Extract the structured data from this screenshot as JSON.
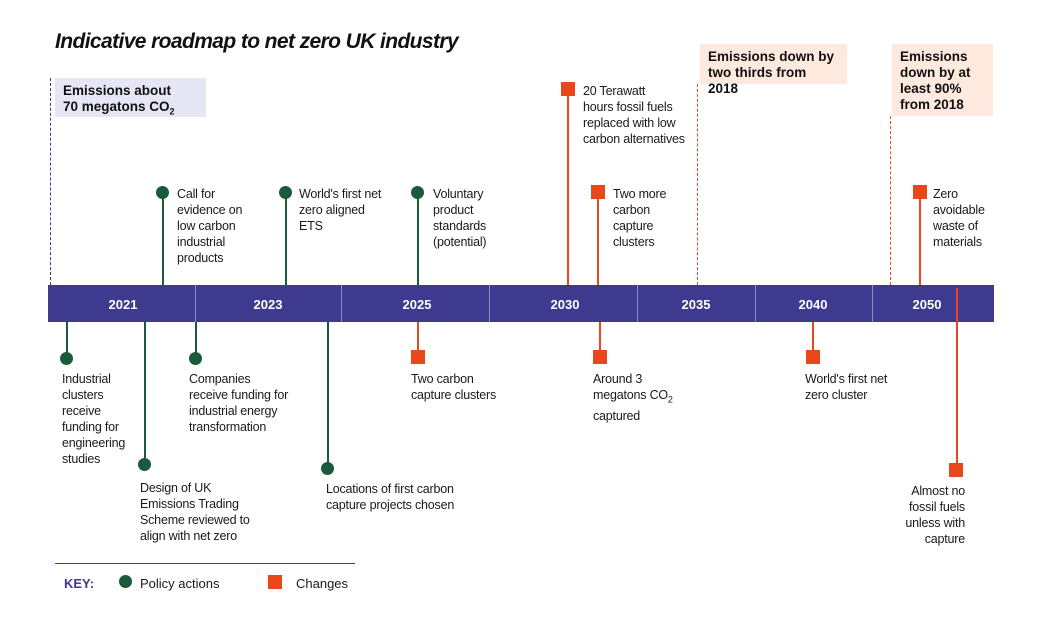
{
  "title": "Indicative roadmap to net zero UK industry",
  "callouts": {
    "start": {
      "line1": "Emissions about",
      "line2_prefix": "70 megatons CO",
      "line2_sub": "2"
    },
    "y2035": {
      "line1": "Emissions down by",
      "line2": "two thirds from 2018"
    },
    "y2050": {
      "line1": "Emissions",
      "line2": "down by at",
      "line3": "least 90%",
      "line4": "from 2018"
    }
  },
  "years": [
    "2021",
    "2023",
    "2025",
    "2030",
    "2035",
    "2040",
    "2050"
  ],
  "policy_above": [
    {
      "lines": [
        "Call for",
        "evidence on",
        "low carbon",
        "industrial",
        "products"
      ]
    },
    {
      "lines": [
        "World's first net",
        "zero aligned",
        "ETS"
      ]
    },
    {
      "lines": [
        "Voluntary",
        "product",
        "standards",
        "(potential)"
      ]
    }
  ],
  "policy_below": [
    {
      "lines": [
        "Industrial",
        "clusters",
        "receive",
        "funding for",
        "engineering",
        "studies"
      ]
    },
    {
      "lines": [
        "Design of UK",
        "Emissions Trading",
        "Scheme reviewed to",
        "align with net zero"
      ]
    },
    {
      "lines": [
        "Companies",
        "receive funding for",
        "industrial energy",
        "transformation"
      ]
    },
    {
      "lines": [
        "Locations of first carbon",
        "capture projects chosen"
      ]
    }
  ],
  "changes_above": [
    {
      "lines": [
        "20 Terawatt",
        "hours fossil fuels",
        "replaced with low",
        "carbon alternatives"
      ]
    },
    {
      "lines": [
        "Two more",
        "carbon",
        "capture",
        "clusters"
      ]
    },
    {
      "lines": [
        "Zero",
        "avoidable",
        "waste of",
        "materials"
      ]
    }
  ],
  "changes_below": [
    {
      "lines": [
        "Two carbon",
        "capture clusters"
      ]
    },
    {
      "line1": "Around 3",
      "line2_prefix": "megatons CO",
      "line2_sub": "2",
      "line3": "captured"
    },
    {
      "lines": [
        "World's first net",
        "zero cluster"
      ]
    },
    {
      "lines": [
        "Almost no",
        "fossil fuels",
        "unless with",
        "capture"
      ]
    }
  ],
  "key": {
    "title": "KEY:",
    "policy": "Policy actions",
    "changes": "Changes"
  },
  "colors": {
    "bar": "#3d3a8f",
    "policy": "#1c5a3e",
    "change": "#e8481c",
    "callout_start": "#e6e6f4",
    "callout_target": "#fde9de"
  }
}
